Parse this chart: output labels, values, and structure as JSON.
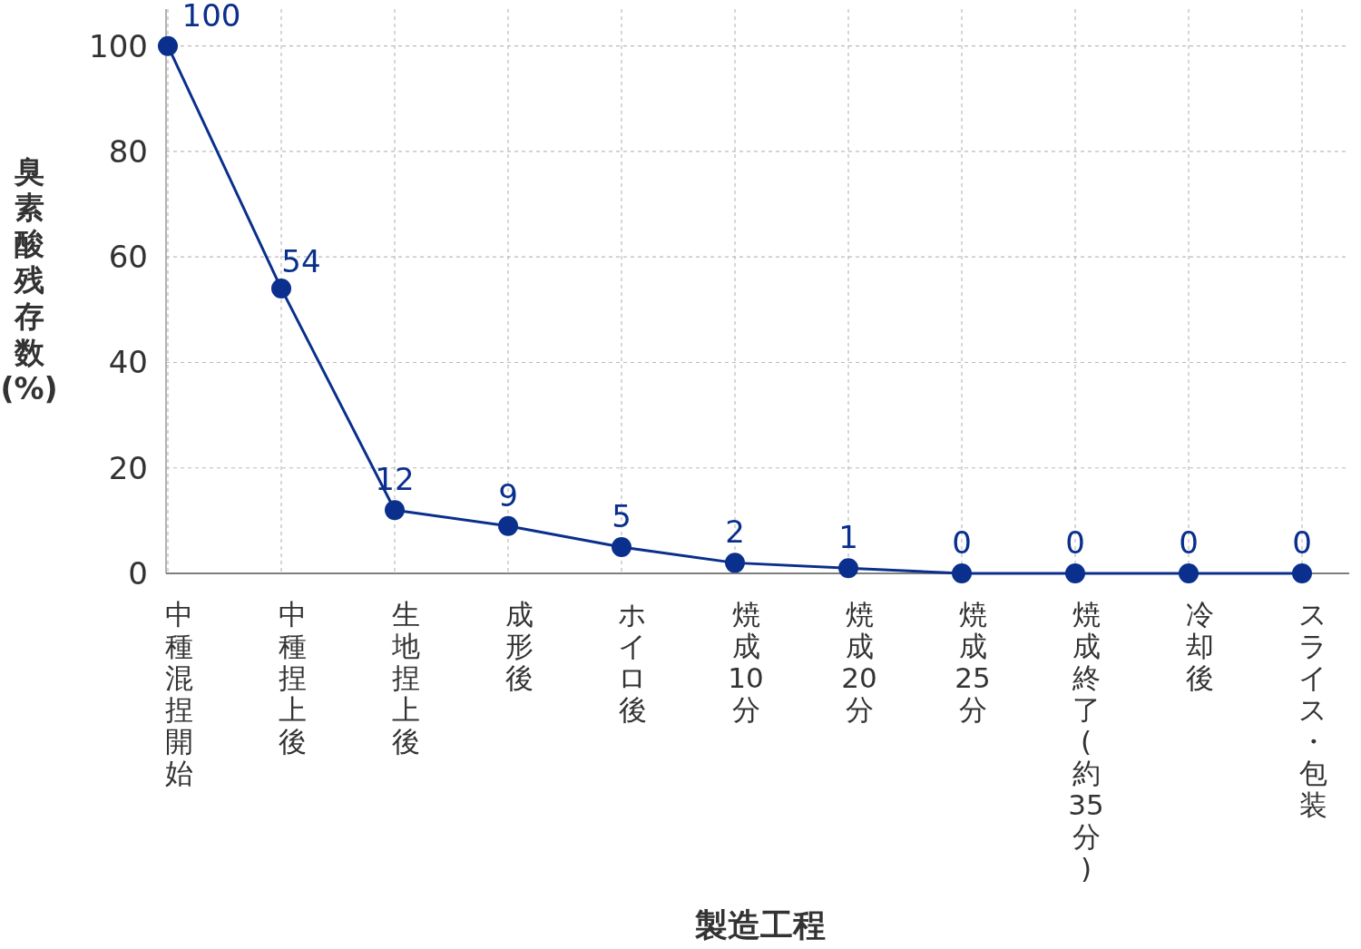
{
  "chart_data": {
    "type": "line",
    "xlabel": "製造工程",
    "ylabel": "臭素酸残存数(%)",
    "categories": [
      "中種混捏開始",
      "中種捏上後",
      "生地捏上後",
      "成形後",
      "ホイロ後",
      "焼成10分",
      "焼成20分",
      "焼成25分",
      "焼成終了(約35分)",
      "冷却後",
      "スライス・包装"
    ],
    "series": [
      {
        "color": "#0a2f8c",
        "values": [
          100,
          54,
          12,
          9,
          5,
          2,
          1,
          0,
          0,
          0,
          0
        ]
      }
    ],
    "ylim": [
      0,
      107
    ],
    "yticks": [
      0,
      20,
      40,
      60,
      80,
      100
    ],
    "grid": true,
    "data_labels": true,
    "marker": "circle",
    "line_style": "solid"
  }
}
